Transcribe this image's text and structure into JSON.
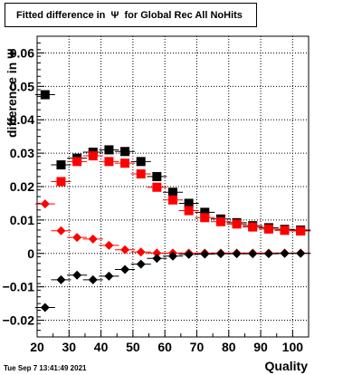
{
  "chart_data": {
    "type": "scatter",
    "title": "Fitted difference in  Ψ  for Global Rec All NoHits",
    "xlabel": "Quality",
    "ylabel": "difference in Ψ",
    "xlim": [
      20,
      105
    ],
    "ylim": [
      -0.025,
      0.065
    ],
    "xticks": [
      20,
      30,
      40,
      50,
      60,
      70,
      80,
      90,
      100
    ],
    "yticks": [
      -0.02,
      -0.01,
      0,
      0.01,
      0.02,
      0.03,
      0.04,
      0.05,
      0.06
    ],
    "ytick_labels": [
      "−0.02",
      "−0.01",
      "0",
      "0.01",
      "0.02",
      "0.03",
      "0.04",
      "0.05",
      "0.06"
    ],
    "grid": true,
    "x": [
      22.5,
      27.5,
      32.5,
      37.5,
      42.5,
      47.5,
      52.5,
      57.5,
      62.5,
      67.5,
      72.5,
      77.5,
      82.5,
      87.5,
      92.5,
      97.5,
      102.5
    ],
    "series": [
      {
        "marker": "square",
        "color": "#000000",
        "values": [
          0.0475,
          0.0265,
          0.0285,
          0.0303,
          0.031,
          0.0305,
          0.0275,
          0.023,
          0.0183,
          0.015,
          0.0123,
          0.0103,
          0.0092,
          0.0083,
          0.0077,
          0.0072,
          0.007
        ]
      },
      {
        "marker": "square",
        "color": "#ff0000",
        "values": [
          null,
          0.0215,
          0.0275,
          0.0292,
          0.0275,
          0.027,
          0.0238,
          0.0198,
          0.016,
          0.0128,
          0.0107,
          0.0095,
          0.0088,
          0.0079,
          0.0073,
          0.0069,
          0.0067
        ]
      },
      {
        "marker": "diamond",
        "color": "#ff0000",
        "values": [
          0.0148,
          0.0068,
          0.0048,
          0.0043,
          0.0024,
          0.0011,
          0.0004,
          0.0001,
          0.0001,
          0.0001,
          0.0001,
          0.0001,
          0.0001,
          0.0001,
          0.0001,
          0.0001,
          0.0001
        ]
      },
      {
        "marker": "diamond",
        "color": "#000000",
        "values": [
          -0.0162,
          -0.0079,
          -0.0065,
          -0.0079,
          -0.0068,
          -0.0048,
          -0.0032,
          -0.0015,
          -0.0008,
          -0.0003,
          -0.0002,
          -0.0001,
          -0.0001,
          -0.0001,
          -0.0001,
          0,
          0
        ]
      }
    ]
  },
  "footer": {
    "timestamp": "Tue Sep  7 13:41:49 2021"
  }
}
